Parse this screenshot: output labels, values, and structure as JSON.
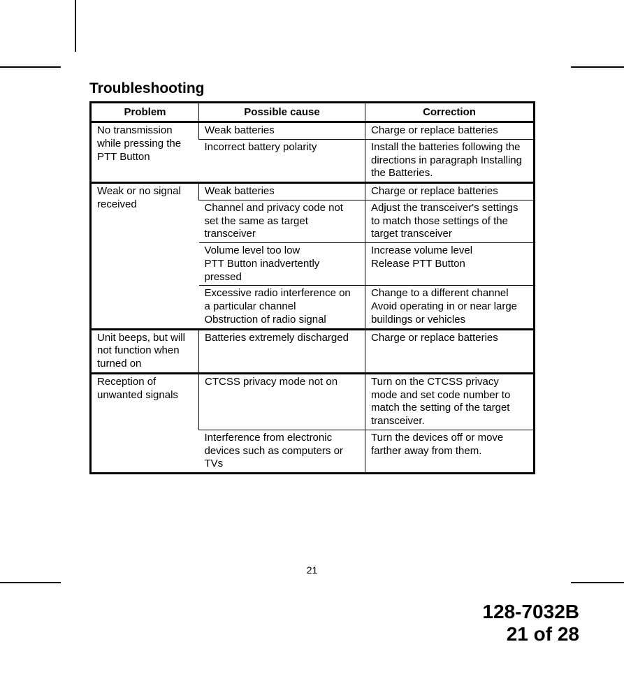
{
  "title": "Troubleshooting",
  "headers": {
    "problem": "Problem",
    "cause": "Possible cause",
    "correction": "Correction"
  },
  "rows": {
    "r1": {
      "problem": "No transmission while pressing the PTT Button",
      "cause": "Weak batteries",
      "correction": "Charge or replace batteries"
    },
    "r2": {
      "cause": "Incorrect battery polarity",
      "correction": "Install the batteries following the directions in paragraph Installing the Batteries."
    },
    "r3": {
      "problem": "Weak or no signal received",
      "cause": "Weak batteries",
      "correction": "Charge or replace batteries"
    },
    "r4": {
      "cause": "Channel and privacy code not set the same as target transceiver",
      "correction": "Adjust  the transceiver's settings to match those settings of the target transceiver"
    },
    "r5a": {
      "cause": "Volume level too low",
      "correction": "Increase volume level"
    },
    "r5b": {
      "cause": "PTT Button inadvertently pressed",
      "correction": "Release PTT Button"
    },
    "r6a": {
      "cause": "Excessive radio interference on a particular channel",
      "correction": "Change to a different channel"
    },
    "r6b": {
      "cause": "Obstruction of radio signal",
      "correction": "Avoid operating in or near large buildings or vehicles"
    },
    "r7": {
      "problem": "Unit beeps, but will not function when turned on",
      "cause": "Batteries extremely discharged",
      "correction": "Charge or replace batteries"
    },
    "r8": {
      "problem": "Reception of unwanted signals",
      "cause": "CTCSS privacy mode not on",
      "correction": "Turn on the CTCSS privacy mode and set code number to match the setting of the target transceiver."
    },
    "r9": {
      "cause": "Interference from electronic devices such as computers or TVs",
      "correction": "Turn the devices off or move farther away from them."
    }
  },
  "page_number": "21",
  "doc_id": "128-7032B",
  "page_of": "21 of 28"
}
